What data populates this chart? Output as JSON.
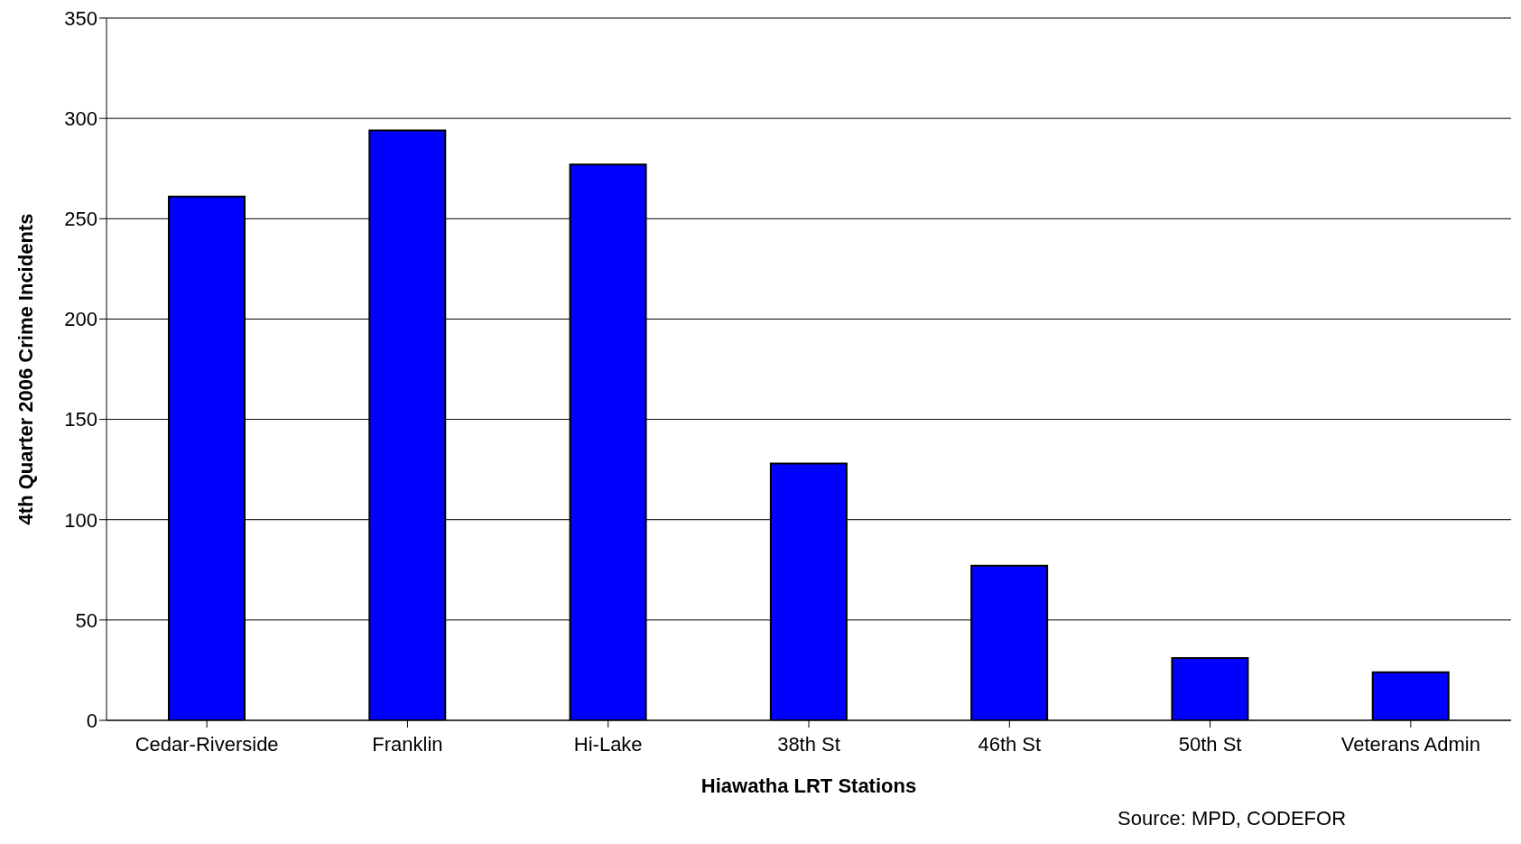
{
  "chart_data": {
    "type": "bar",
    "xlabel": "Hiawatha LRT Stations",
    "ylabel": "4th Quarter 2006 Crime Incidents",
    "categories": [
      "Cedar-Riverside",
      "Franklin",
      "Hi-Lake",
      "38th St",
      "46th St",
      "50th St",
      "Veterans Admin"
    ],
    "values": [
      261,
      294,
      277,
      128,
      77,
      31,
      24
    ],
    "color": "#0000ff",
    "ylim": [
      0,
      350
    ],
    "yticks": [
      0,
      50,
      100,
      150,
      200,
      250,
      300,
      350
    ],
    "grid": "y",
    "legend": false,
    "annotations": [
      "Source: MPD, CODEFOR"
    ]
  }
}
